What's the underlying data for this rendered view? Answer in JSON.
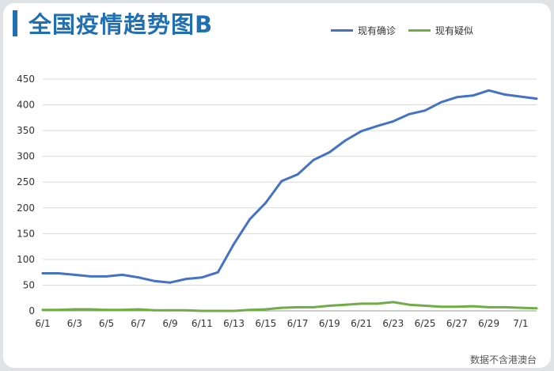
{
  "title": "全国疫情趋势图B",
  "note": "数据不含港澳台",
  "colors": {
    "confirmed": "#4472c4",
    "suspected": "#70ad47",
    "title": "#1f6fb2"
  },
  "chart_data": {
    "type": "line",
    "title": "全国疫情趋势图B",
    "x": [
      "6/1",
      "6/2",
      "6/3",
      "6/4",
      "6/5",
      "6/6",
      "6/7",
      "6/8",
      "6/9",
      "6/10",
      "6/11",
      "6/12",
      "6/13",
      "6/14",
      "6/15",
      "6/16",
      "6/17",
      "6/18",
      "6/19",
      "6/20",
      "6/21",
      "6/22",
      "6/23",
      "6/24",
      "6/25",
      "6/26",
      "6/27",
      "6/28",
      "6/29",
      "6/30",
      "7/1",
      "7/2"
    ],
    "x_tick_labels": [
      "6/1",
      "6/3",
      "6/5",
      "6/7",
      "6/9",
      "6/11",
      "6/13",
      "6/15",
      "6/17",
      "6/19",
      "6/21",
      "6/23",
      "6/25",
      "6/27",
      "6/29",
      "7/1"
    ],
    "series": [
      {
        "name": "现有确诊",
        "values": [
          73,
          73,
          70,
          67,
          67,
          70,
          65,
          58,
          55,
          62,
          65,
          75,
          130,
          178,
          210,
          252,
          265,
          293,
          308,
          331,
          349,
          359,
          368,
          382,
          389,
          405,
          415,
          418,
          428,
          420,
          416,
          412
        ]
      },
      {
        "name": "现有疑似",
        "values": [
          2,
          2,
          3,
          3,
          2,
          2,
          3,
          1,
          1,
          1,
          0,
          0,
          0,
          2,
          3,
          6,
          7,
          7,
          10,
          12,
          14,
          14,
          17,
          12,
          10,
          8,
          8,
          9,
          7,
          7,
          6,
          5
        ]
      }
    ],
    "ylim": [
      0,
      450
    ],
    "yticks": [
      0,
      50,
      100,
      150,
      200,
      250,
      300,
      350,
      400,
      450
    ],
    "grid": true,
    "legend_position": "top-right"
  }
}
